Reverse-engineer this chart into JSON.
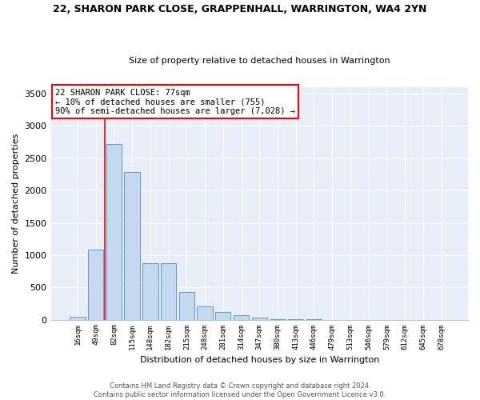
{
  "title": "22, SHARON PARK CLOSE, GRAPPENHALL, WARRINGTON, WA4 2YN",
  "subtitle": "Size of property relative to detached houses in Warrington",
  "xlabel": "Distribution of detached houses by size in Warrington",
  "ylabel": "Number of detached properties",
  "categories": [
    "16sqm",
    "49sqm",
    "82sqm",
    "115sqm",
    "148sqm",
    "182sqm",
    "215sqm",
    "248sqm",
    "281sqm",
    "314sqm",
    "347sqm",
    "380sqm",
    "413sqm",
    "446sqm",
    "479sqm",
    "513sqm",
    "546sqm",
    "579sqm",
    "612sqm",
    "645sqm",
    "678sqm"
  ],
  "values": [
    50,
    1080,
    2720,
    2290,
    870,
    870,
    430,
    200,
    120,
    75,
    30,
    10,
    3,
    1,
    0,
    0,
    0,
    0,
    0,
    0,
    0
  ],
  "bar_color": "#c5d8ef",
  "bar_edge_color": "#5a9ec8",
  "background_color": "#e8eef8",
  "annotation_line1": "22 SHARON PARK CLOSE: 77sqm",
  "annotation_line2": "← 10% of detached houses are smaller (755)",
  "annotation_line3": "90% of semi-detached houses are larger (7,028) →",
  "property_line_x": 1.5,
  "ylim": [
    0,
    3600
  ],
  "yticks": [
    0,
    500,
    1000,
    1500,
    2000,
    2500,
    3000,
    3500
  ],
  "footer_line1": "Contains HM Land Registry data © Crown copyright and database right 2024.",
  "footer_line2": "Contains public sector information licensed under the Open Government Licence v3.0."
}
